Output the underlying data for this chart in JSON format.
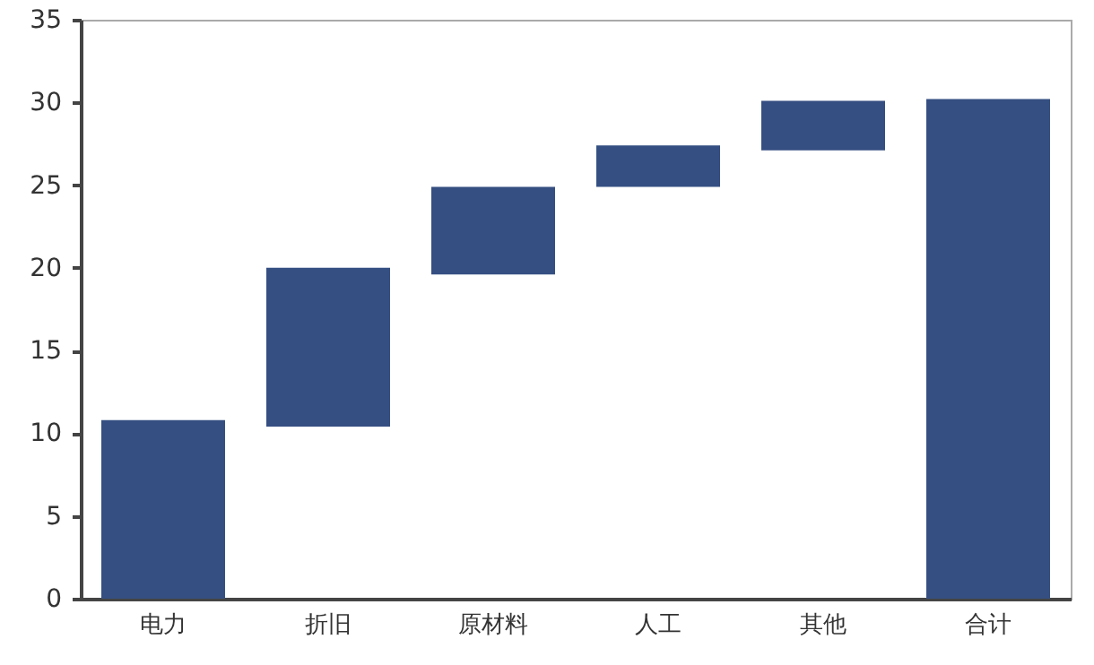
{
  "chart_data": {
    "type": "bar",
    "categories": [
      "电力",
      "折旧",
      "原材料",
      "人工",
      "其他",
      "合计"
    ],
    "values": [
      10.8,
      9.6,
      5.3,
      2.5,
      3.0,
      30.2
    ],
    "base": [
      0,
      10.4,
      19.6,
      24.9,
      27.1,
      0
    ],
    "color": "#354f82",
    "ylim": [
      0,
      35
    ],
    "yticks": [
      0,
      5,
      10,
      15,
      20,
      25,
      30,
      35
    ],
    "grid": false
  }
}
